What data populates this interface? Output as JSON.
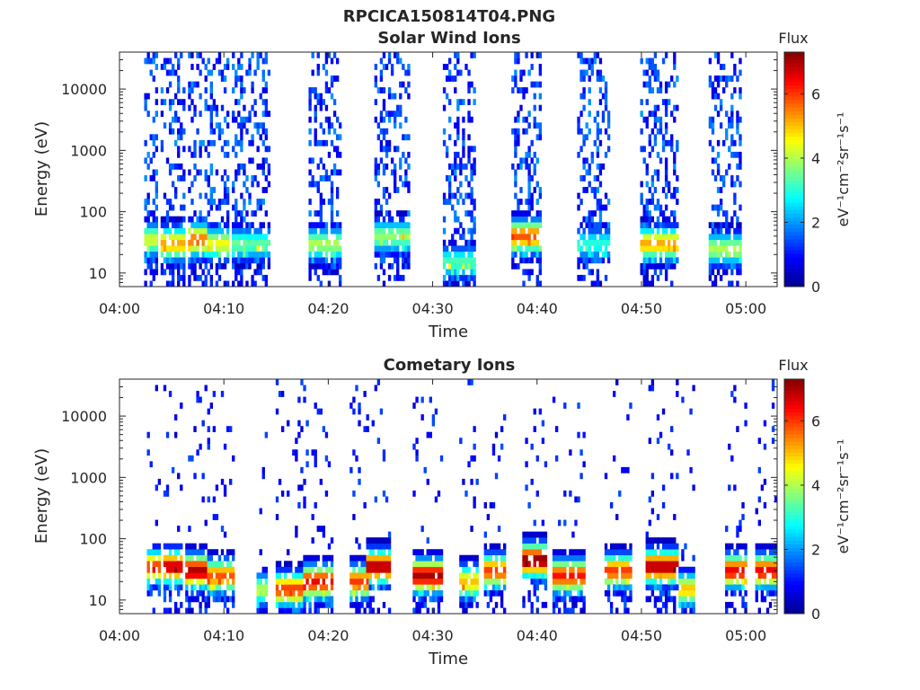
{
  "figure_title": "RPCICA150814T04.PNG",
  "colormap": [
    "#00008f",
    "#0000ff",
    "#0080ff",
    "#00ffff",
    "#80ff80",
    "#ffff00",
    "#ff8000",
    "#ff0000",
    "#800000"
  ],
  "chart_data": [
    {
      "type": "heatmap",
      "title": "Solar Wind Ions",
      "xlabel": "Time",
      "ylabel": "Energy (eV)",
      "x_ticks": [
        "04:00",
        "04:10",
        "04:20",
        "04:30",
        "04:40",
        "04:50",
        "05:00"
      ],
      "x_tick_minutes": [
        0,
        10,
        20,
        30,
        40,
        50,
        60
      ],
      "xlim_minutes": [
        0,
        63
      ],
      "y_scale": "log",
      "y_ticks": [
        "10",
        "100",
        "1000",
        "10000"
      ],
      "y_tick_values": [
        10,
        100,
        1000,
        10000
      ],
      "ylim": [
        6,
        40000
      ],
      "colorbar": {
        "title": "Flux",
        "label": "eV⁻¹cm⁻²sr⁻¹s⁻¹",
        "ticks": [
          "0",
          "2",
          "4",
          "6"
        ],
        "tick_values": [
          0,
          2,
          4,
          6
        ],
        "range": [
          0,
          7.3
        ]
      },
      "sweeps": [
        {
          "start": 2.3,
          "end": 3.6,
          "peak": 4.3,
          "peak_energy": 35
        },
        {
          "start": 4.0,
          "end": 6.3,
          "peak": 5.2,
          "peak_energy": 30
        },
        {
          "start": 6.5,
          "end": 8.4,
          "peak": 5.6,
          "peak_energy": 35
        },
        {
          "start": 8.5,
          "end": 10.6,
          "peak": 4.5,
          "peak_energy": 30
        },
        {
          "start": 10.8,
          "end": 12.2,
          "peak": 3.5,
          "peak_energy": 30
        },
        {
          "start": 12.0,
          "end": 14.5,
          "peak": 3.4,
          "peak_energy": 30
        },
        {
          "start": 18.2,
          "end": 21.2,
          "peak": 4.0,
          "peak_energy": 30
        },
        {
          "start": 24.3,
          "end": 27.7,
          "peak": 3.8,
          "peak_energy": 40
        },
        {
          "start": 31.0,
          "end": 34.2,
          "peak": 3.3,
          "peak_energy": 15
        },
        {
          "start": 37.5,
          "end": 40.5,
          "peak": 5.8,
          "peak_energy": 40
        },
        {
          "start": 43.8,
          "end": 47.0,
          "peak": 3.0,
          "peak_energy": 30
        },
        {
          "start": 50.0,
          "end": 53.5,
          "peak": 5.2,
          "peak_energy": 30
        },
        {
          "start": 56.5,
          "end": 59.5,
          "peak": 4.0,
          "peak_energy": 25
        }
      ]
    },
    {
      "type": "heatmap",
      "title": "Cometary Ions",
      "xlabel": "Time",
      "ylabel": "Energy (eV)",
      "x_ticks": [
        "04:00",
        "04:10",
        "04:20",
        "04:30",
        "04:40",
        "04:50",
        "05:00"
      ],
      "x_tick_minutes": [
        0,
        10,
        20,
        30,
        40,
        50,
        60
      ],
      "xlim_minutes": [
        0,
        63
      ],
      "y_scale": "log",
      "y_ticks": [
        "10",
        "100",
        "1000",
        "10000"
      ],
      "y_tick_values": [
        10,
        100,
        1000,
        10000
      ],
      "ylim": [
        6,
        40000
      ],
      "colorbar": {
        "title": "Flux",
        "label": "eV⁻¹cm⁻²sr⁻¹s⁻¹",
        "ticks": [
          "0",
          "2",
          "4",
          "6"
        ],
        "tick_values": [
          0,
          2,
          4,
          6
        ],
        "range": [
          0,
          7.3
        ]
      },
      "sweeps": [
        {
          "start": 2.5,
          "end": 4.0,
          "peak": 6.0,
          "peak_energy": 35
        },
        {
          "start": 4.2,
          "end": 6.0,
          "peak": 6.8,
          "peak_energy": 35
        },
        {
          "start": 6.2,
          "end": 8.5,
          "peak": 7.0,
          "peak_energy": 30
        },
        {
          "start": 8.5,
          "end": 11.0,
          "peak": 5.8,
          "peak_energy": 25
        },
        {
          "start": 13.0,
          "end": 14.3,
          "peak": 4.0,
          "peak_energy": 15
        },
        {
          "start": 15.0,
          "end": 17.5,
          "peak": 6.0,
          "peak_energy": 15
        },
        {
          "start": 17.5,
          "end": 20.5,
          "peak": 6.5,
          "peak_energy": 20
        },
        {
          "start": 22.0,
          "end": 24.0,
          "peak": 6.0,
          "peak_energy": 20
        },
        {
          "start": 23.5,
          "end": 26.0,
          "peak": 7.0,
          "peak_energy": 35
        },
        {
          "start": 28.0,
          "end": 31.0,
          "peak": 7.0,
          "peak_energy": 25
        },
        {
          "start": 32.5,
          "end": 34.5,
          "peak": 5.0,
          "peak_energy": 20
        },
        {
          "start": 35.0,
          "end": 37.0,
          "peak": 6.0,
          "peak_energy": 30
        },
        {
          "start": 38.5,
          "end": 41.0,
          "peak": 7.2,
          "peak_energy": 45
        },
        {
          "start": 41.5,
          "end": 44.5,
          "peak": 6.3,
          "peak_energy": 25
        },
        {
          "start": 46.5,
          "end": 49.0,
          "peak": 6.0,
          "peak_energy": 30
        },
        {
          "start": 50.5,
          "end": 53.5,
          "peak": 7.0,
          "peak_energy": 35
        },
        {
          "start": 53.5,
          "end": 55.0,
          "peak": 5.0,
          "peak_energy": 15
        },
        {
          "start": 58.0,
          "end": 60.0,
          "peak": 6.5,
          "peak_energy": 30
        },
        {
          "start": 61.0,
          "end": 63.0,
          "peak": 6.5,
          "peak_energy": 30
        }
      ]
    }
  ]
}
